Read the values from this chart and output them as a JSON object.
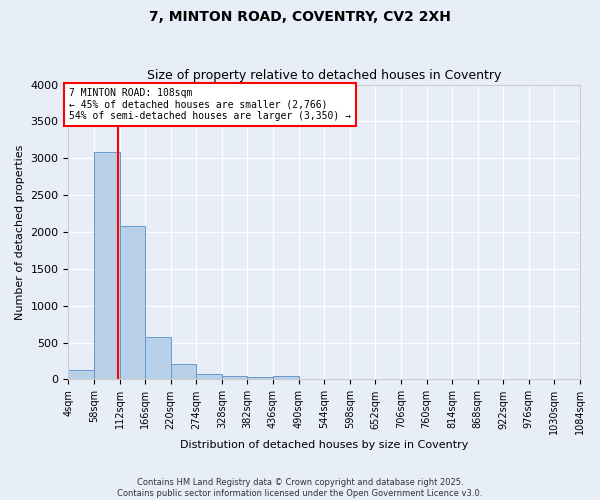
{
  "title": "7, MINTON ROAD, COVENTRY, CV2 2XH",
  "subtitle": "Size of property relative to detached houses in Coventry",
  "xlabel": "Distribution of detached houses by size in Coventry",
  "ylabel": "Number of detached properties",
  "footer_line1": "Contains HM Land Registry data © Crown copyright and database right 2025.",
  "footer_line2": "Contains public sector information licensed under the Open Government Licence v3.0.",
  "bin_labels": [
    "4sqm",
    "58sqm",
    "112sqm",
    "166sqm",
    "220sqm",
    "274sqm",
    "328sqm",
    "382sqm",
    "436sqm",
    "490sqm",
    "544sqm",
    "598sqm",
    "652sqm",
    "706sqm",
    "760sqm",
    "814sqm",
    "868sqm",
    "922sqm",
    "976sqm",
    "1030sqm",
    "1084sqm"
  ],
  "bin_edges": [
    4,
    58,
    112,
    166,
    220,
    274,
    328,
    382,
    436,
    490,
    544,
    598,
    652,
    706,
    760,
    814,
    868,
    922,
    976,
    1030,
    1084
  ],
  "bar_heights": [
    130,
    3080,
    2080,
    570,
    210,
    70,
    45,
    35,
    50,
    0,
    0,
    0,
    0,
    0,
    0,
    0,
    0,
    0,
    0,
    0
  ],
  "bar_color": "#b8d0e8",
  "bar_edge_color": "#6699cc",
  "red_line_x": 108,
  "annotation_text": "7 MINTON ROAD: 108sqm\n← 45% of detached houses are smaller (2,766)\n54% of semi-detached houses are larger (3,350) →",
  "ylim": [
    0,
    4000
  ],
  "background_color": "#e8eef8",
  "grid_color": "#ffffff",
  "title_fontsize": 10,
  "subtitle_fontsize": 9,
  "axis_label_fontsize": 8,
  "tick_fontsize": 7,
  "annotation_fontsize": 7,
  "footer_fontsize": 6
}
